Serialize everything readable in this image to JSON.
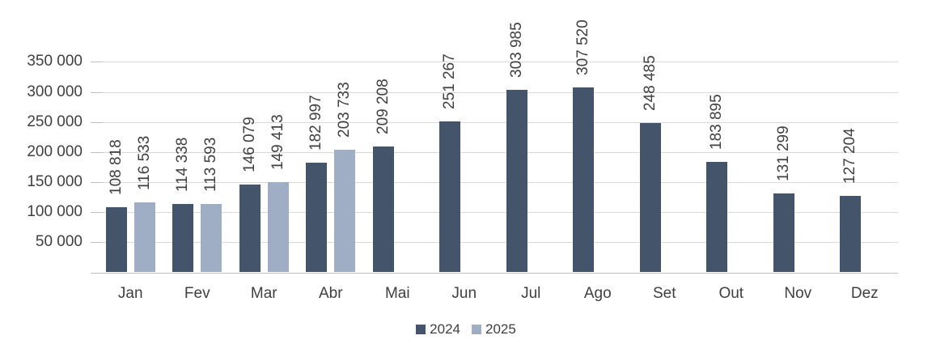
{
  "chart_data": {
    "type": "bar",
    "categories": [
      "Jan",
      "Fev",
      "Mar",
      "Abr",
      "Mai",
      "Jun",
      "Jul",
      "Ago",
      "Set",
      "Out",
      "Nov",
      "Dez"
    ],
    "series": [
      {
        "name": "2024",
        "color": "#44546A",
        "values": [
          108818,
          114338,
          146079,
          182997,
          209208,
          251267,
          303985,
          307520,
          248485,
          183895,
          131299,
          127204
        ],
        "labels": [
          "108 818",
          "114 338",
          "146 079",
          "182 997",
          "209 208",
          "251 267",
          "303 985",
          "307 520",
          "248 485",
          "183 895",
          "131 299",
          "127 204"
        ]
      },
      {
        "name": "2025",
        "color": "#A0AEC5",
        "values": [
          116533,
          113593,
          149413,
          203733,
          null,
          null,
          null,
          null,
          null,
          null,
          null,
          null
        ],
        "labels": [
          "116 533",
          "113 593",
          "149 413",
          "203 733",
          null,
          null,
          null,
          null,
          null,
          null,
          null,
          null
        ]
      }
    ],
    "y_axis": {
      "min": 0,
      "max": 350000,
      "gridline_step": 50000,
      "ticks": [
        {
          "value": 50000,
          "label": "50 000"
        },
        {
          "value": 100000,
          "label": "100 000"
        },
        {
          "value": 150000,
          "label": "150 000"
        },
        {
          "value": 200000,
          "label": "200 000"
        },
        {
          "value": 250000,
          "label": "250 000"
        },
        {
          "value": 300000,
          "label": "300 000"
        },
        {
          "value": 350000,
          "label": "350 000"
        }
      ]
    },
    "legend": {
      "position": "bottom-center"
    },
    "grid": true,
    "data_label_rotation_degrees": -90
  },
  "colors": {
    "bar_2024": "#44546A",
    "bar_2025": "#A0AEC5",
    "gridline": "#D9D9D9",
    "axis_line": "#BFBFBF",
    "text": "#404040",
    "background": "#FFFFFF"
  }
}
